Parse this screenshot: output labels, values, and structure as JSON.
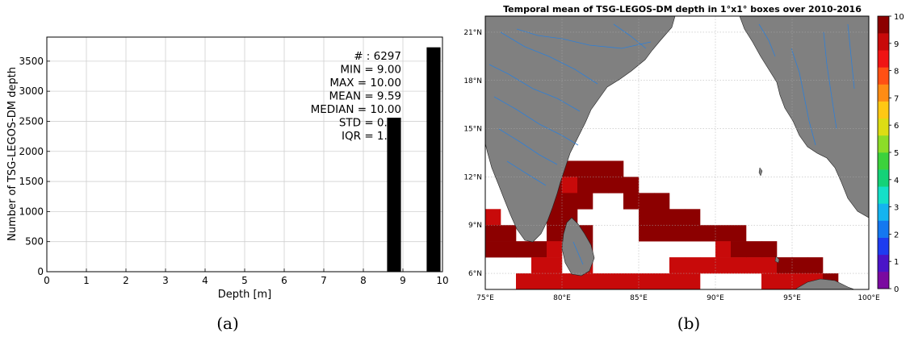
{
  "chart_data": [
    {
      "type": "bar",
      "caption": "(a)",
      "xlabel": "Depth [m]",
      "ylabel": "Number of TSG-LEGOS-DM depth",
      "xlim": [
        0,
        10
      ],
      "ylim": [
        0,
        3900
      ],
      "xticks": [
        "0",
        "1",
        "2",
        "3",
        "4",
        "5",
        "6",
        "7",
        "8",
        "9",
        "10"
      ],
      "yticks": [
        "0",
        "500",
        "1000",
        "1500",
        "2000",
        "2500",
        "3000",
        "3500"
      ],
      "grid": true,
      "bars": [
        {
          "x_from": 8.6,
          "x_to": 8.95,
          "value": 2560
        },
        {
          "x_from": 9.6,
          "x_to": 9.95,
          "value": 3730
        }
      ],
      "stats": [
        "# : 6297",
        "MIN = 9.00",
        "MAX =  10.00",
        "MEAN = 9.59",
        "MEDIAN = 10.00",
        "STD = 0.49",
        "IQR = 1.00"
      ]
    },
    {
      "type": "heatmap",
      "caption": "(b)",
      "title": "Temporal mean of TSG-LEGOS-DM depth in 1°x1° boxes over 2010-2016",
      "xlim": [
        75,
        100
      ],
      "ylim": [
        5,
        22
      ],
      "xticks": [
        {
          "v": 75,
          "t": "75°E"
        },
        {
          "v": 80,
          "t": "80°E"
        },
        {
          "v": 85,
          "t": "85°E"
        },
        {
          "v": 90,
          "t": "90°E"
        },
        {
          "v": 95,
          "t": "95°E"
        },
        {
          "v": 100,
          "t": "100°E"
        }
      ],
      "yticks": [
        {
          "v": 6,
          "t": "6°N"
        },
        {
          "v": 9,
          "t": "9°N"
        },
        {
          "v": 12,
          "t": "12°N"
        },
        {
          "v": 15,
          "t": "15°N"
        },
        {
          "v": 18,
          "t": "18°N"
        },
        {
          "v": 21,
          "t": "21°N"
        }
      ],
      "colorbar": {
        "min": 0,
        "max": 10,
        "ticks": [
          "0",
          "1",
          "2",
          "3",
          "4",
          "5",
          "6",
          "7",
          "8",
          "9",
          "10"
        ],
        "colors": [
          "#7a0aa0",
          "#4a14c8",
          "#1e3cf0",
          "#1478f0",
          "#14b4f0",
          "#14e0c8",
          "#14d278",
          "#3cd23c",
          "#8cdc28",
          "#dcdc14",
          "#ffc814",
          "#ff8c14",
          "#ff5014",
          "#f01414",
          "#c80a0a",
          "#8c0000"
        ]
      },
      "cells": [
        {
          "lon": 74,
          "lat": 10,
          "v": 9.0
        },
        {
          "lon": 74,
          "lat": 9,
          "v": 10
        },
        {
          "lon": 74,
          "lat": 8,
          "v": 10
        },
        {
          "lon": 74,
          "lat": 7,
          "v": 10
        },
        {
          "lon": 75,
          "lat": 9,
          "v": 9.0
        },
        {
          "lon": 75,
          "lat": 8,
          "v": 10
        },
        {
          "lon": 75,
          "lat": 7,
          "v": 10
        },
        {
          "lon": 76,
          "lat": 8,
          "v": 10
        },
        {
          "lon": 76,
          "lat": 7,
          "v": 10
        },
        {
          "lon": 77,
          "lat": 7,
          "v": 10
        },
        {
          "lon": 77,
          "lat": 5,
          "v": 9.0
        },
        {
          "lon": 78,
          "lat": 7,
          "v": 10
        },
        {
          "lon": 78,
          "lat": 6,
          "v": 9.0
        },
        {
          "lon": 78,
          "lat": 5,
          "v": 9.0
        },
        {
          "lon": 79,
          "lat": 13,
          "v": 10
        },
        {
          "lon": 79,
          "lat": 12,
          "v": 10
        },
        {
          "lon": 79,
          "lat": 11,
          "v": 10
        },
        {
          "lon": 79,
          "lat": 10,
          "v": 10
        },
        {
          "lon": 79,
          "lat": 9,
          "v": 10
        },
        {
          "lon": 79,
          "lat": 8,
          "v": 10
        },
        {
          "lon": 79,
          "lat": 7,
          "v": 9.0
        },
        {
          "lon": 79,
          "lat": 6,
          "v": 9.0
        },
        {
          "lon": 79,
          "lat": 5,
          "v": 9.0
        },
        {
          "lon": 80,
          "lat": 12,
          "v": 10
        },
        {
          "lon": 80,
          "lat": 11,
          "v": 9.0
        },
        {
          "lon": 80,
          "lat": 10,
          "v": 10
        },
        {
          "lon": 80,
          "lat": 9,
          "v": 10
        },
        {
          "lon": 80,
          "lat": 8,
          "v": 10
        },
        {
          "lon": 80,
          "lat": 5,
          "v": 9.0
        },
        {
          "lon": 81,
          "lat": 12,
          "v": 10
        },
        {
          "lon": 81,
          "lat": 11,
          "v": 10
        },
        {
          "lon": 81,
          "lat": 10,
          "v": 10
        },
        {
          "lon": 81,
          "lat": 8,
          "v": 10
        },
        {
          "lon": 81,
          "lat": 7,
          "v": 10
        },
        {
          "lon": 81,
          "lat": 6,
          "v": 9.0
        },
        {
          "lon": 81,
          "lat": 5,
          "v": 9.0
        },
        {
          "lon": 82,
          "lat": 12,
          "v": 10
        },
        {
          "lon": 82,
          "lat": 11,
          "v": 10
        },
        {
          "lon": 82,
          "lat": 5,
          "v": 9.0
        },
        {
          "lon": 83,
          "lat": 12,
          "v": 10
        },
        {
          "lon": 83,
          "lat": 11,
          "v": 10
        },
        {
          "lon": 83,
          "lat": 5,
          "v": 9.0
        },
        {
          "lon": 84,
          "lat": 11,
          "v": 10
        },
        {
          "lon": 84,
          "lat": 10,
          "v": 10
        },
        {
          "lon": 84,
          "lat": 5,
          "v": 9.0
        },
        {
          "lon": 85,
          "lat": 10,
          "v": 10
        },
        {
          "lon": 85,
          "lat": 9,
          "v": 10
        },
        {
          "lon": 85,
          "lat": 8,
          "v": 10
        },
        {
          "lon": 85,
          "lat": 5,
          "v": 9.0
        },
        {
          "lon": 86,
          "lat": 10,
          "v": 10
        },
        {
          "lon": 86,
          "lat": 9,
          "v": 10
        },
        {
          "lon": 86,
          "lat": 8,
          "v": 10
        },
        {
          "lon": 86,
          "lat": 5,
          "v": 9.0
        },
        {
          "lon": 87,
          "lat": 9,
          "v": 10
        },
        {
          "lon": 87,
          "lat": 8,
          "v": 10
        },
        {
          "lon": 87,
          "lat": 6,
          "v": 9.0
        },
        {
          "lon": 87,
          "lat": 5,
          "v": 9.0
        },
        {
          "lon": 88,
          "lat": 9,
          "v": 10
        },
        {
          "lon": 88,
          "lat": 8,
          "v": 10
        },
        {
          "lon": 88,
          "lat": 6,
          "v": 9.0
        },
        {
          "lon": 88,
          "lat": 5,
          "v": 9.0
        },
        {
          "lon": 89,
          "lat": 8,
          "v": 10
        },
        {
          "lon": 89,
          "lat": 6,
          "v": 9.0
        },
        {
          "lon": 90,
          "lat": 8,
          "v": 10
        },
        {
          "lon": 90,
          "lat": 7,
          "v": 9.0
        },
        {
          "lon": 90,
          "lat": 6,
          "v": 9.0
        },
        {
          "lon": 91,
          "lat": 8,
          "v": 10
        },
        {
          "lon": 91,
          "lat": 7,
          "v": 10
        },
        {
          "lon": 91,
          "lat": 6,
          "v": 9.0
        },
        {
          "lon": 92,
          "lat": 7,
          "v": 10
        },
        {
          "lon": 92,
          "lat": 6,
          "v": 9.0
        },
        {
          "lon": 93,
          "lat": 7,
          "v": 10
        },
        {
          "lon": 93,
          "lat": 6,
          "v": 9.0
        },
        {
          "lon": 93,
          "lat": 5,
          "v": 9.0
        },
        {
          "lon": 94,
          "lat": 6,
          "v": 10
        },
        {
          "lon": 94,
          "lat": 5,
          "v": 9.0
        },
        {
          "lon": 95,
          "lat": 6,
          "v": 10
        },
        {
          "lon": 95,
          "lat": 5,
          "v": 9.0
        },
        {
          "lon": 96,
          "lat": 6,
          "v": 10
        },
        {
          "lon": 96,
          "lat": 5,
          "v": 9.0
        },
        {
          "lon": 97,
          "lat": 5,
          "v": 10
        }
      ]
    }
  ]
}
